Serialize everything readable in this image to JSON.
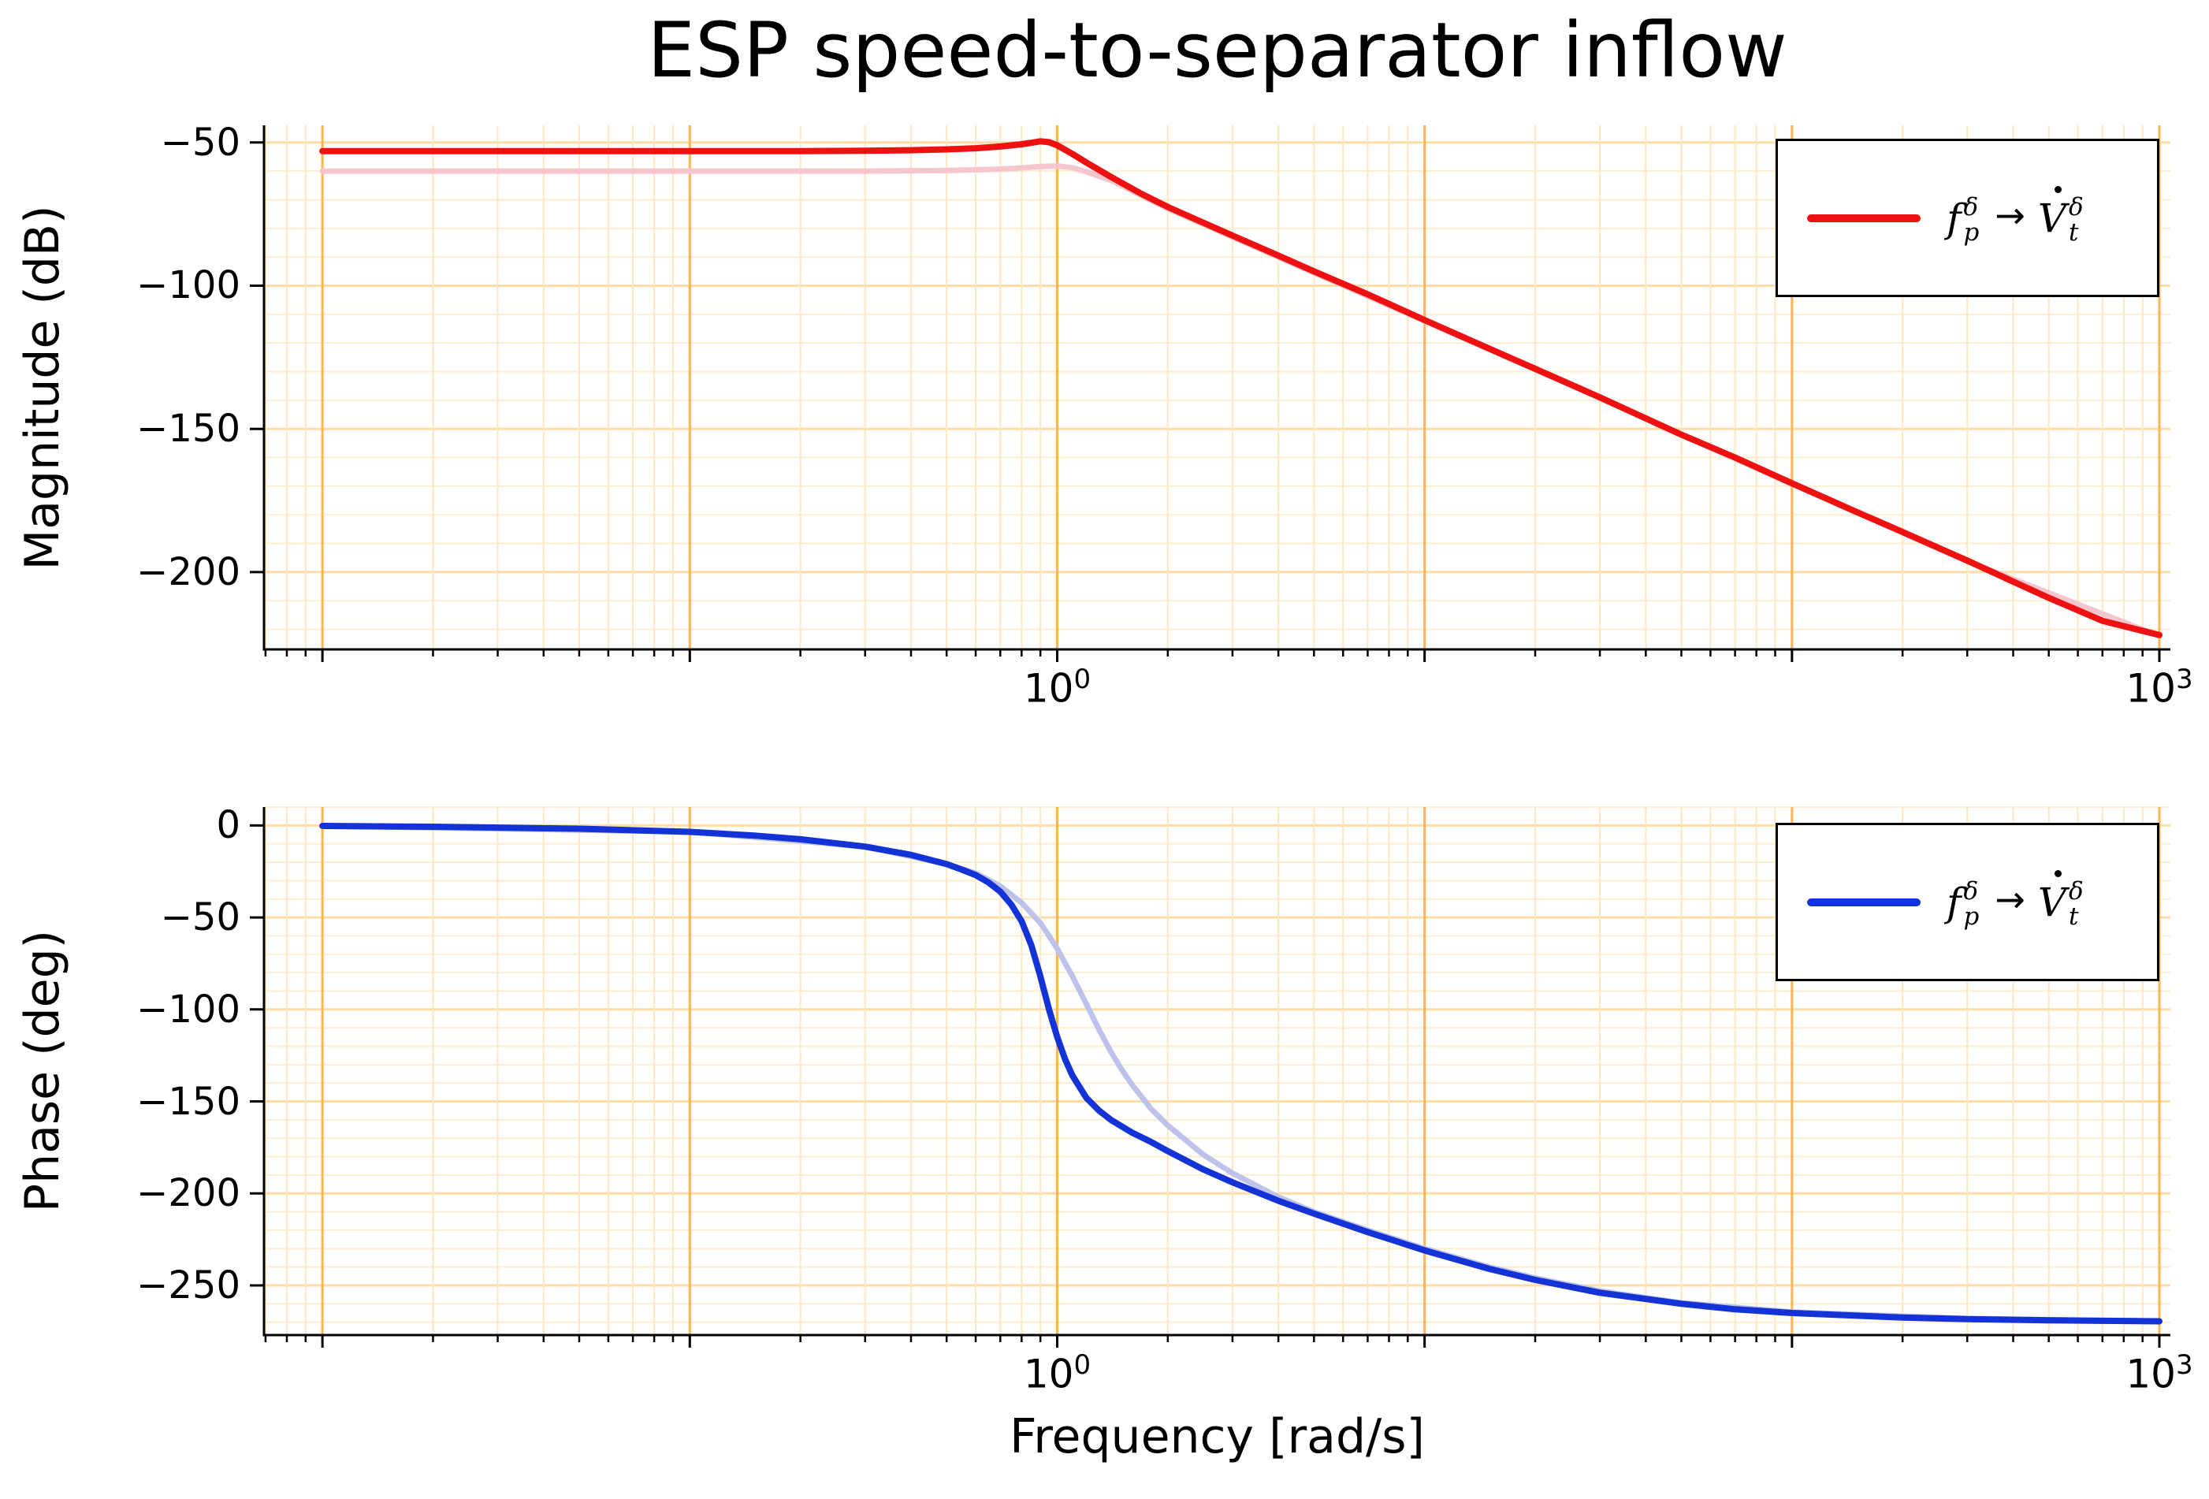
{
  "title": "ESP speed-to-separator inflow",
  "xlabel": "Frequency [rad/s]",
  "legend_label": {
    "var_from": "f",
    "sup_from": "δ",
    "sub_from": "p",
    "arrow": "→",
    "var_to": "V",
    "sup_to": "δ",
    "sub_to": "t"
  },
  "colors": {
    "background": "#ffffff",
    "grid_minor_v": "#ffe7c2",
    "grid_major_v": "#ffb554",
    "grid_minor_h": "#ffedd0",
    "grid_major_h": "#ffdca6",
    "spine": "#000000",
    "tick": "#000000"
  },
  "chart_data": [
    {
      "type": "line",
      "name": "magnitude-bode",
      "ylabel": "Magnitude (dB)",
      "xscale": "log",
      "xlim_log": [
        -2.159,
        3.03
      ],
      "ylim": [
        -227,
        -44
      ],
      "yticks": [
        -50,
        -100,
        -150,
        -200
      ],
      "y_minor_step": 10,
      "xticks_labeled": [
        {
          "mantissa": "10",
          "exp": "0",
          "value": 1
        },
        {
          "mantissa": "10",
          "exp": "3",
          "value": 1000
        }
      ],
      "grid": true,
      "legend_position": "top-right",
      "series": [
        {
          "name": "secondary-model",
          "role": "secondary",
          "color": "#f5c6cd",
          "width": 7,
          "points": [
            [
              0.01,
              -60
            ],
            [
              0.1,
              -60
            ],
            [
              0.3,
              -60
            ],
            [
              0.5,
              -59.8
            ],
            [
              0.7,
              -59.3
            ],
            [
              0.8,
              -58.9
            ],
            [
              0.9,
              -58.4
            ],
            [
              1.0,
              -58.2
            ],
            [
              1.1,
              -58.8
            ],
            [
              1.2,
              -60.2
            ],
            [
              1.4,
              -63.2
            ],
            [
              1.7,
              -68.6
            ],
            [
              2,
              -73
            ],
            [
              3,
              -83
            ],
            [
              5,
              -95.5
            ],
            [
              10,
              -112.3
            ],
            [
              30,
              -139.2
            ],
            [
              100,
              -169.2
            ],
            [
              300,
              -196.2
            ],
            [
              1000,
              -222.3
            ]
          ]
        },
        {
          "name": "fp-to-Vt-magnitude",
          "role": "main",
          "color": "#ee1111",
          "width": 8,
          "points": [
            [
              0.01,
              -53
            ],
            [
              0.05,
              -53
            ],
            [
              0.1,
              -53
            ],
            [
              0.2,
              -53
            ],
            [
              0.3,
              -52.9
            ],
            [
              0.4,
              -52.7
            ],
            [
              0.5,
              -52.4
            ],
            [
              0.6,
              -52
            ],
            [
              0.7,
              -51.4
            ],
            [
              0.8,
              -50.6
            ],
            [
              0.85,
              -50.1
            ],
            [
              0.9,
              -49.6
            ],
            [
              0.95,
              -49.9
            ],
            [
              1.0,
              -51
            ],
            [
              1.1,
              -54
            ],
            [
              1.2,
              -57
            ],
            [
              1.4,
              -62
            ],
            [
              1.7,
              -68
            ],
            [
              2,
              -72.5
            ],
            [
              2.5,
              -78
            ],
            [
              3,
              -82.5
            ],
            [
              4,
              -89.5
            ],
            [
              5,
              -95
            ],
            [
              7,
              -103
            ],
            [
              10,
              -112
            ],
            [
              15,
              -122
            ],
            [
              20,
              -129
            ],
            [
              30,
              -139
            ],
            [
              50,
              -152
            ],
            [
              70,
              -160
            ],
            [
              100,
              -169
            ],
            [
              150,
              -179
            ],
            [
              200,
              -186
            ],
            [
              300,
              -196
            ],
            [
              500,
              -209
            ],
            [
              700,
              -217
            ],
            [
              1000,
              -222
            ]
          ]
        }
      ]
    },
    {
      "type": "line",
      "name": "phase-bode",
      "ylabel": "Phase (deg)",
      "xscale": "log",
      "xlim_log": [
        -2.159,
        3.03
      ],
      "ylim": [
        -277,
        10
      ],
      "yticks": [
        0,
        -50,
        -100,
        -150,
        -200,
        -250
      ],
      "y_minor_step": 10,
      "xticks_labeled": [
        {
          "mantissa": "10",
          "exp": "0",
          "value": 1
        },
        {
          "mantissa": "10",
          "exp": "3",
          "value": 1000
        }
      ],
      "grid": true,
      "legend_position": "top-right",
      "series": [
        {
          "name": "secondary-model",
          "role": "secondary",
          "color": "#bcc2ea",
          "width": 7,
          "points": [
            [
              0.01,
              -0.3
            ],
            [
              0.1,
              -3.5
            ],
            [
              0.3,
              -11.5
            ],
            [
              0.5,
              -21
            ],
            [
              0.6,
              -26
            ],
            [
              0.7,
              -33
            ],
            [
              0.8,
              -42
            ],
            [
              0.9,
              -53
            ],
            [
              0.95,
              -60
            ],
            [
              1.0,
              -67
            ],
            [
              1.1,
              -82
            ],
            [
              1.2,
              -97
            ],
            [
              1.3,
              -111
            ],
            [
              1.4,
              -123
            ],
            [
              1.5,
              -133
            ],
            [
              1.6,
              -141
            ],
            [
              1.8,
              -154
            ],
            [
              2.0,
              -163
            ],
            [
              2.5,
              -179
            ],
            [
              3,
              -189
            ],
            [
              4,
              -202
            ],
            [
              5,
              -210
            ],
            [
              7,
              -220
            ],
            [
              10,
              -230
            ],
            [
              15,
              -240
            ],
            [
              20,
              -246
            ],
            [
              30,
              -253
            ],
            [
              50,
              -259.5
            ],
            [
              100,
              -264.5
            ],
            [
              300,
              -268
            ],
            [
              1000,
              -269.4
            ]
          ]
        },
        {
          "name": "fp-to-Vt-phase",
          "role": "main",
          "color": "#1433d6",
          "width": 8,
          "points": [
            [
              0.01,
              -0.3
            ],
            [
              0.02,
              -0.7
            ],
            [
              0.05,
              -1.8
            ],
            [
              0.1,
              -3.5
            ],
            [
              0.15,
              -5.5
            ],
            [
              0.2,
              -7.5
            ],
            [
              0.3,
              -11.5
            ],
            [
              0.4,
              -16
            ],
            [
              0.5,
              -21
            ],
            [
              0.55,
              -24
            ],
            [
              0.6,
              -27
            ],
            [
              0.65,
              -31
            ],
            [
              0.7,
              -36
            ],
            [
              0.75,
              -43
            ],
            [
              0.8,
              -52
            ],
            [
              0.85,
              -65
            ],
            [
              0.9,
              -82
            ],
            [
              0.95,
              -100
            ],
            [
              1.0,
              -115
            ],
            [
              1.05,
              -127
            ],
            [
              1.1,
              -136
            ],
            [
              1.2,
              -148
            ],
            [
              1.3,
              -155
            ],
            [
              1.4,
              -160
            ],
            [
              1.6,
              -167
            ],
            [
              1.8,
              -172
            ],
            [
              2.0,
              -177
            ],
            [
              2.5,
              -187
            ],
            [
              3,
              -194
            ],
            [
              4,
              -204
            ],
            [
              5,
              -211
            ],
            [
              7,
              -221
            ],
            [
              10,
              -231
            ],
            [
              15,
              -241
            ],
            [
              20,
              -247
            ],
            [
              30,
              -254
            ],
            [
              50,
              -260
            ],
            [
              70,
              -263
            ],
            [
              100,
              -265
            ],
            [
              200,
              -267.5
            ],
            [
              300,
              -268.3
            ],
            [
              500,
              -269
            ],
            [
              1000,
              -269.5
            ]
          ]
        }
      ]
    }
  ]
}
